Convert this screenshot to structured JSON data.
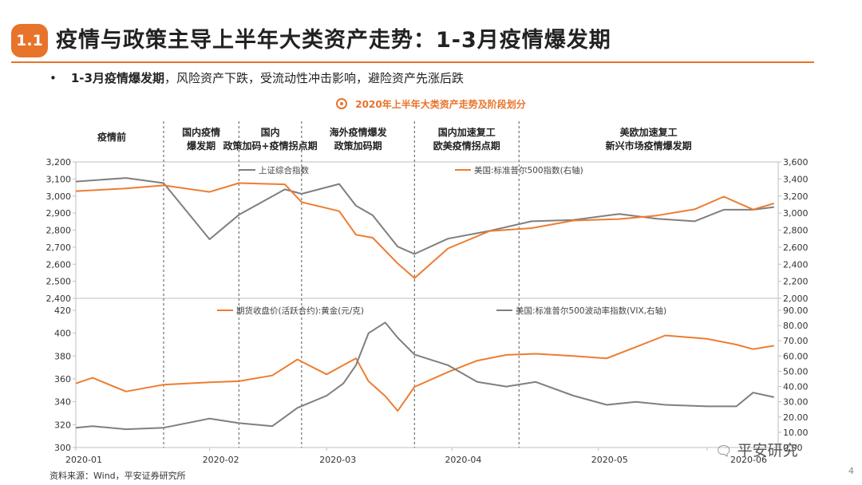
{
  "header": {
    "section_number": "1.1",
    "title": "疫情与政策主导上半年大类资产走势：1-3月疫情爆发期"
  },
  "bullet": {
    "symbol": "•",
    "bold_text": "1-3月疫情爆发期",
    "text": "，风险资产下跌，受流动性冲击影响，避险资产先涨后跌"
  },
  "chart_heading": "2020年上半年大类资产走势及阶段划分",
  "phases": [
    {
      "label_line1": "疫情前",
      "label_line2": ""
    },
    {
      "label_line1": "国内疫情",
      "label_line2": "爆发期"
    },
    {
      "label_line1": "国内",
      "label_line2": "政策加码+疫情拐点期"
    },
    {
      "label_line1": "海外疫情爆发",
      "label_line2": "政策加码期"
    },
    {
      "label_line1": "国内加速复工",
      "label_line2": "欧美疫情拐点期"
    },
    {
      "label_line1": "美欧加速复工",
      "label_line2": "新兴市场疫情爆发期"
    }
  ],
  "colors": {
    "accent": "#e8732a",
    "gray_series": "#7f7f7f",
    "orange_series": "#ed7d31"
  },
  "chart_data": [
    {
      "type": "line",
      "x_dates": [
        "2020-01-02",
        "2020-01-14",
        "2020-01-23",
        "2020-02-03",
        "2020-02-10",
        "2020-02-21",
        "2020-02-25",
        "2020-03-05",
        "2020-03-09",
        "2020-03-13",
        "2020-03-19",
        "2020-03-23",
        "2020-03-31",
        "2020-04-10",
        "2020-04-20",
        "2020-04-30",
        "2020-05-11",
        "2020-05-20",
        "2020-05-29",
        "2020-06-05",
        "2020-06-12",
        "2020-06-17"
      ],
      "series": [
        {
          "name": "上证综合指数",
          "axis": "left",
          "color": "#7f7f7f",
          "values": [
            3085,
            3106,
            3076,
            2746,
            2890,
            3039,
            3013,
            3071,
            2943,
            2887,
            2703,
            2660,
            2750,
            2796,
            2852,
            2860,
            2895,
            2867,
            2852,
            2920,
            2920,
            2935
          ]
        },
        {
          "name": "美国:标准普尔500指数(右轴)",
          "axis": "right",
          "color": "#ed7d31",
          "values": [
            3258,
            3288,
            3325,
            3248,
            3352,
            3337,
            3128,
            3023,
            2746,
            2711,
            2409,
            2237,
            2585,
            2790,
            2823,
            2912,
            2930,
            2971,
            3044,
            3193,
            3041,
            3113
          ]
        }
      ],
      "ylim_left": [
        2400,
        3200
      ],
      "ylim_right": [
        2000,
        3600
      ],
      "yticks_left": [
        "2,400",
        "2,500",
        "2,600",
        "2,700",
        "2,800",
        "2,900",
        "3,000",
        "3,100",
        "3,200"
      ],
      "yticks_right": [
        "2,000",
        "2,200",
        "2,400",
        "2,600",
        "2,800",
        "3,000",
        "3,200",
        "3,400",
        "3,600"
      ],
      "xtick_labels": [
        "2020-01",
        "2020-02",
        "2020-03",
        "2020-04",
        "2020-05",
        "2020-06"
      ],
      "grid": false,
      "legend": "top"
    },
    {
      "type": "line",
      "x_dates": [
        "2020-01-02",
        "2020-01-06",
        "2020-01-14",
        "2020-01-23",
        "2020-02-03",
        "2020-02-10",
        "2020-02-18",
        "2020-02-24",
        "2020-03-02",
        "2020-03-06",
        "2020-03-09",
        "2020-03-12",
        "2020-03-16",
        "2020-03-19",
        "2020-03-23",
        "2020-03-31",
        "2020-04-07",
        "2020-04-14",
        "2020-04-21",
        "2020-04-30",
        "2020-05-08",
        "2020-05-15",
        "2020-05-22",
        "2020-06-01",
        "2020-06-08",
        "2020-06-12",
        "2020-06-17"
      ],
      "series": [
        {
          "name": "期货收盘价(活跃合约):黄金(元/克)",
          "axis": "left",
          "color": "#ed7d31",
          "values": [
            356,
            361,
            349,
            355,
            357,
            358,
            363,
            377,
            364,
            372,
            378,
            358,
            345,
            332,
            353,
            366,
            376,
            381,
            382,
            380,
            378,
            388,
            398,
            395,
            390,
            386,
            389
          ]
        },
        {
          "name": "美国:标准普尔500波动率指数(VIX,右轴)",
          "axis": "right",
          "color": "#7f7f7f",
          "values": [
            13,
            14,
            12,
            13,
            19,
            16,
            14,
            26,
            34,
            42,
            54,
            75,
            82,
            72,
            61,
            54,
            43,
            40,
            43,
            34,
            28,
            30,
            28,
            27,
            27,
            36,
            33
          ]
        }
      ],
      "ylim_left": [
        300,
        420
      ],
      "ylim_right": [
        0,
        90
      ],
      "yticks_left": [
        "300",
        "320",
        "340",
        "360",
        "380",
        "400",
        "420"
      ],
      "yticks_right": [
        "0.00",
        "10.00",
        "20.00",
        "30.00",
        "40.00",
        "50.00",
        "60.00",
        "70.00",
        "80.00",
        "90.00"
      ],
      "xtick_labels": [
        "2020-01",
        "2020-02",
        "2020-03",
        "2020-04",
        "2020-05",
        "2020-06"
      ],
      "grid": false,
      "legend": "top"
    }
  ],
  "source": "资料来源：Wind，平安证券研究所",
  "page_number": "4",
  "watermark": {
    "icon": "wechat-icon",
    "text": "平安研究"
  }
}
